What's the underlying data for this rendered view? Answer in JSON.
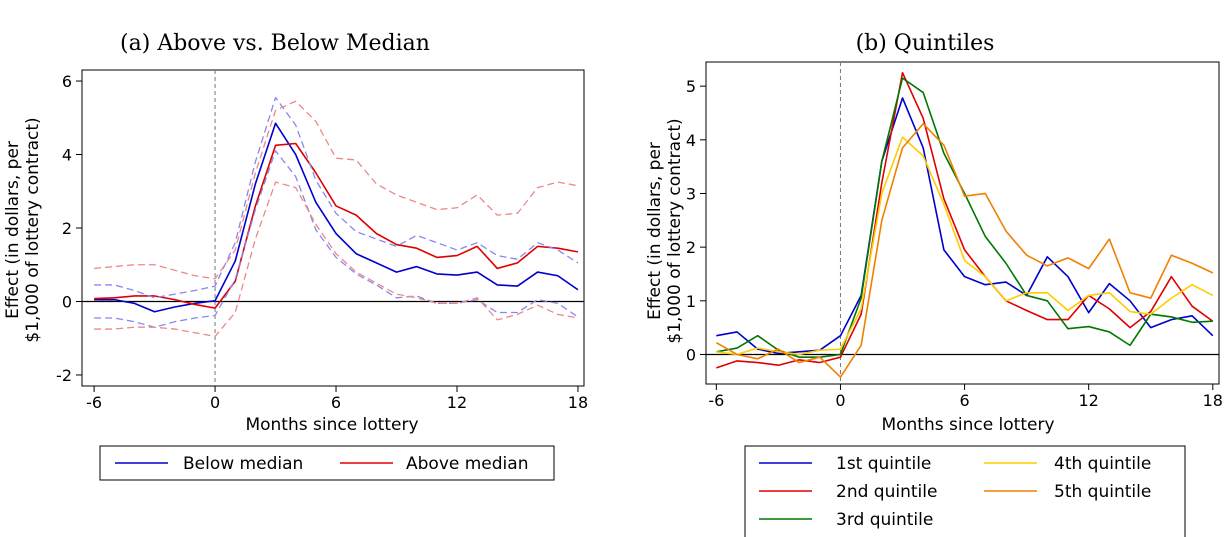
{
  "chart_data": [
    {
      "type": "line",
      "title": "(a) Above vs. Below Median",
      "xlabel": "Months since lottery",
      "ylabel": [
        "Effect (in dollars, per",
        "$1,000 of lottery contract)"
      ],
      "xlim": [
        -6.6,
        18.3
      ],
      "ylim": [
        -2.3,
        6.3
      ],
      "xticks": [
        -6,
        0,
        6,
        12,
        18
      ],
      "yticks": [
        -2,
        0,
        2,
        4,
        6
      ],
      "x": [
        -6,
        -5,
        -4,
        -3,
        -2,
        -1,
        0,
        1,
        2,
        3,
        4,
        5,
        6,
        7,
        8,
        9,
        10,
        11,
        12,
        13,
        14,
        15,
        16,
        17,
        18
      ],
      "series": [
        {
          "name": "Below median",
          "color": "#0000cc",
          "style": "solid",
          "values": [
            0.05,
            0.05,
            -0.05,
            -0.28,
            -0.15,
            -0.05,
            0.02,
            1.1,
            3.2,
            4.85,
            4.0,
            2.7,
            1.85,
            1.3,
            1.05,
            0.8,
            0.95,
            0.75,
            0.72,
            0.8,
            0.45,
            0.42,
            0.8,
            0.7,
            0.32
          ]
        },
        {
          "name": "Above median",
          "color": "#e00000",
          "style": "solid",
          "values": [
            0.08,
            0.1,
            0.15,
            0.15,
            0.05,
            -0.08,
            -0.18,
            0.55,
            2.6,
            4.25,
            4.3,
            3.5,
            2.6,
            2.35,
            1.85,
            1.55,
            1.45,
            1.2,
            1.25,
            1.5,
            0.9,
            1.05,
            1.5,
            1.45,
            1.35
          ]
        },
        {
          "name": "Below median CI upper",
          "color": "#8888ee",
          "style": "dashed",
          "values": [
            0.45,
            0.45,
            0.3,
            0.1,
            0.2,
            0.3,
            0.42,
            1.6,
            3.8,
            5.55,
            4.8,
            3.3,
            2.4,
            1.9,
            1.7,
            1.5,
            1.8,
            1.6,
            1.4,
            1.6,
            1.25,
            1.15,
            1.6,
            1.4,
            1.05
          ]
        },
        {
          "name": "Below median CI lower",
          "color": "#8888ee",
          "style": "dashed",
          "values": [
            -0.45,
            -0.45,
            -0.55,
            -0.7,
            -0.55,
            -0.45,
            -0.38,
            0.6,
            2.5,
            4.1,
            3.4,
            1.95,
            1.2,
            0.75,
            0.45,
            0.1,
            0.15,
            -0.05,
            -0.05,
            0.05,
            -0.3,
            -0.3,
            0.05,
            -0.05,
            -0.42
          ]
        },
        {
          "name": "Above median CI upper",
          "color": "#ee8888",
          "style": "dashed",
          "values": [
            0.9,
            0.95,
            1.0,
            1.0,
            0.85,
            0.7,
            0.62,
            1.4,
            3.5,
            5.2,
            5.45,
            4.9,
            3.9,
            3.85,
            3.2,
            2.9,
            2.7,
            2.5,
            2.55,
            2.9,
            2.35,
            2.4,
            3.1,
            3.25,
            3.15
          ]
        },
        {
          "name": "Above median CI lower",
          "color": "#ee8888",
          "style": "dashed",
          "values": [
            -0.75,
            -0.75,
            -0.7,
            -0.7,
            -0.75,
            -0.85,
            -0.95,
            -0.3,
            1.7,
            3.25,
            3.1,
            2.1,
            1.3,
            0.8,
            0.5,
            0.2,
            0.1,
            -0.05,
            -0.05,
            0.1,
            -0.5,
            -0.35,
            -0.1,
            -0.35,
            -0.45
          ]
        }
      ],
      "legend": [
        "Below median",
        "Above median"
      ],
      "legend_placement": "bottom",
      "reference_lines": {
        "y0": true,
        "x0_dashed": true
      }
    },
    {
      "type": "line",
      "title": "(b) Quintiles",
      "xlabel": "Months since lottery",
      "ylabel": [
        "Effect (in dollars, per",
        "$1,000 of lottery contract)"
      ],
      "xlim": [
        -6.5,
        18.3
      ],
      "ylim": [
        -0.55,
        5.45
      ],
      "xticks": [
        -6,
        0,
        6,
        12,
        18
      ],
      "yticks": [
        0,
        1,
        2,
        3,
        4,
        5
      ],
      "x": [
        -6,
        -5,
        -4,
        -3,
        -2,
        -1,
        0,
        1,
        2,
        3,
        4,
        5,
        6,
        7,
        8,
        9,
        10,
        11,
        12,
        13,
        14,
        15,
        16,
        17,
        18
      ],
      "series": [
        {
          "name": "1st quintile",
          "color": "#0000cc",
          "values": [
            0.35,
            0.42,
            0.1,
            0.02,
            0.05,
            0.08,
            0.35,
            1.1,
            3.6,
            4.78,
            3.85,
            1.95,
            1.45,
            1.3,
            1.35,
            1.1,
            1.82,
            1.45,
            0.78,
            1.32,
            1.0,
            0.5,
            0.65,
            0.72,
            0.35
          ]
        },
        {
          "name": "2nd quintile",
          "color": "#e00000",
          "values": [
            -0.25,
            -0.12,
            -0.15,
            -0.2,
            -0.1,
            -0.15,
            -0.05,
            0.75,
            3.2,
            5.25,
            4.4,
            2.9,
            1.95,
            1.45,
            1.0,
            0.82,
            0.65,
            0.65,
            1.1,
            0.85,
            0.5,
            0.8,
            1.45,
            0.9,
            0.62
          ]
        },
        {
          "name": "3rd quintile",
          "color": "#007700",
          "values": [
            0.05,
            0.12,
            0.35,
            0.08,
            -0.05,
            -0.05,
            0.0,
            1.05,
            3.6,
            5.15,
            4.88,
            3.75,
            3.0,
            2.2,
            1.7,
            1.1,
            1.0,
            0.48,
            0.52,
            0.42,
            0.17,
            0.75,
            0.7,
            0.6,
            0.62
          ]
        },
        {
          "name": "4th quintile",
          "color": "#ffcc00",
          "values": [
            0.05,
            0.0,
            0.12,
            0.05,
            0.0,
            0.08,
            0.1,
            0.85,
            3.0,
            4.05,
            3.7,
            2.8,
            1.75,
            1.45,
            1.0,
            1.15,
            1.15,
            0.82,
            1.1,
            1.15,
            0.8,
            0.75,
            1.05,
            1.3,
            1.1
          ]
        },
        {
          "name": "5th quintile",
          "color": "#f08000",
          "values": [
            0.22,
            0.0,
            -0.08,
            0.1,
            -0.15,
            -0.05,
            -0.42,
            0.17,
            2.5,
            3.85,
            4.3,
            3.9,
            2.95,
            3.0,
            2.3,
            1.85,
            1.65,
            1.8,
            1.6,
            2.15,
            1.15,
            1.05,
            1.85,
            1.7,
            1.52
          ]
        }
      ],
      "legend": [
        "1st quintile",
        "2nd quintile",
        "3rd quintile",
        "4th quintile",
        "5th quintile"
      ],
      "legend_placement": "bottom",
      "reference_lines": {
        "y0": true,
        "x0_dashed": true
      }
    }
  ]
}
